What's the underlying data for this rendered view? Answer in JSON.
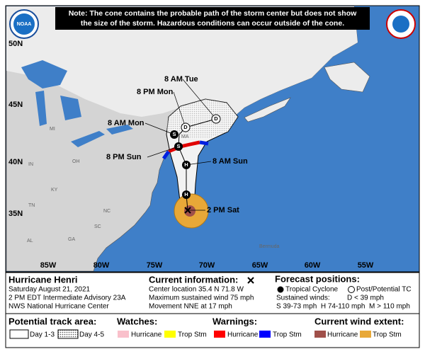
{
  "header": {
    "note": [
      "Note: The cone contains the probable path of the storm center but does not show",
      "the size of the storm. Hazardous conditions can occur outside of the cone."
    ],
    "logo": "NOAA"
  },
  "map": {
    "lat_labels": [
      "50N",
      "45N",
      "40N",
      "35N"
    ],
    "lon_labels": [
      "85W",
      "80W",
      "75W",
      "70W",
      "65W",
      "60W",
      "55W"
    ],
    "place_labels": [
      "MI",
      "IN",
      "OH",
      "KY",
      "TN",
      "NC",
      "SC",
      "GA",
      "AL",
      "MA",
      "Bermuda"
    ],
    "track_labels": [
      "8 AM Tue",
      "8 PM Mon",
      "8 AM Mon",
      "8 PM Sun",
      "8 AM Sun",
      "2 PM Sat"
    ],
    "markers": [
      "D",
      "D",
      "S",
      "S",
      "H",
      "H"
    ]
  },
  "legend": {
    "storm": {
      "title": "Hurricane Henri",
      "date": "Saturday August 21, 2021",
      "advisory": "2 PM EDT Intermediate Advisory 23A",
      "center": "NWS National Hurricane Center"
    },
    "current": {
      "title": "Current information:",
      "location": "Center location 35.4 N 71.8 W",
      "wind": "Maximum sustained wind 75 mph",
      "movement": "Movement NNE at 17 mph"
    },
    "forecast": {
      "title": "Forecast positions:",
      "tropical": "Tropical Cyclone",
      "post": "Post/Potential TC",
      "winds": "Sustained winds:",
      "d": "D < 39 mph",
      "scale": "S 39-73 mph  H 74-110 mph  M > 110 mph"
    },
    "track": {
      "title": "Potential track area:",
      "day13": "Day 1-3",
      "day45": "Day 4-5"
    },
    "watches": {
      "title": "Watches:",
      "hurricane": "Hurricane",
      "trop": "Trop Stm"
    },
    "warnings": {
      "title": "Warnings:",
      "hurricane": "Hurricane",
      "trop": "Trop Stm"
    },
    "wind_extent": {
      "title": "Current wind extent:",
      "hurricane": "Hurricane",
      "trop": "Trop Stm"
    }
  }
}
